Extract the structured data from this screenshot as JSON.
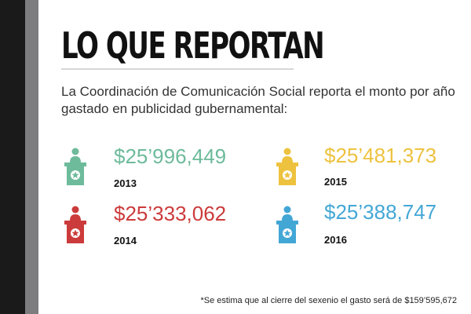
{
  "title": "LO QUE REPORTAN",
  "intro": "La Coordinación de Comunicación Social reporta el monto por año gastado en publicidad gubernamental:",
  "items": [
    {
      "amount": "$25’996,449",
      "year": "2013",
      "color": "#6dbb9b",
      "icon": "podium-icon"
    },
    {
      "amount": "$25’333,062",
      "year": "2014",
      "color": "#cc3b3b",
      "icon": "podium-icon"
    },
    {
      "amount": "$25’481,373",
      "year": "2015",
      "color": "#edc23f",
      "icon": "podium-icon"
    },
    {
      "amount": "$25’388,747",
      "year": "2016",
      "color": "#43a7d6",
      "icon": "podium-icon"
    }
  ],
  "footnote": "*Se estima que al cierre del sexenio el gasto será de $159’595,672"
}
